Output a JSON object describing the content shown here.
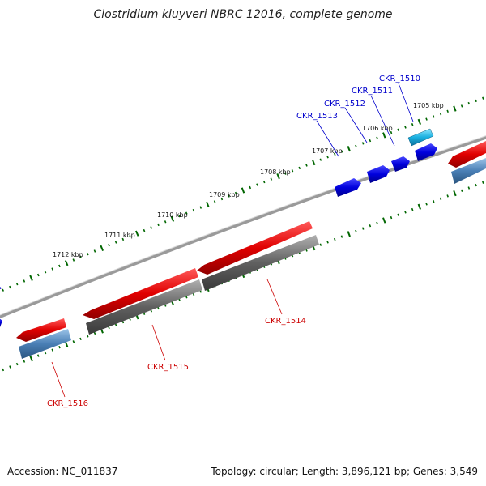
{
  "title": "Clostridium kluyveri NBRC 12016, complete genome",
  "footer": {
    "accession": "Accession: NC_011837",
    "summary": "Topology: circular; Length: 3,896,121 bp; Genes: 3,549"
  },
  "kbp_labels": [
    "1705 kbp",
    "1706 kbp",
    "1707 kbp",
    "1708 kbp",
    "1709 kbp",
    "1710 kbp",
    "1711 kbp",
    "1712 kbp"
  ],
  "genes": [
    {
      "id": "CKR_1510",
      "strand": "forward",
      "color": "#1ab0e0"
    },
    {
      "id": "CKR_1511",
      "strand": "forward",
      "color": "#0000cc"
    },
    {
      "id": "CKR_1512",
      "strand": "forward",
      "color": "#0000cc"
    },
    {
      "id": "CKR_1513",
      "strand": "forward",
      "color": "#0000cc"
    },
    {
      "id": "CKR_1514",
      "strand": "reverse",
      "color": "#dd0000"
    },
    {
      "id": "CKR_1515",
      "strand": "reverse",
      "color": "#dd0000"
    },
    {
      "id": "CKR_1516",
      "strand": "reverse",
      "color": "#dd0000"
    }
  ],
  "colors": {
    "forward_label": "#0000cc",
    "reverse_label": "#cc0000",
    "backbone": "#808080",
    "ticks": "#006600",
    "blast_gray": "#606060",
    "blast_blue": "#4a7fb5"
  }
}
